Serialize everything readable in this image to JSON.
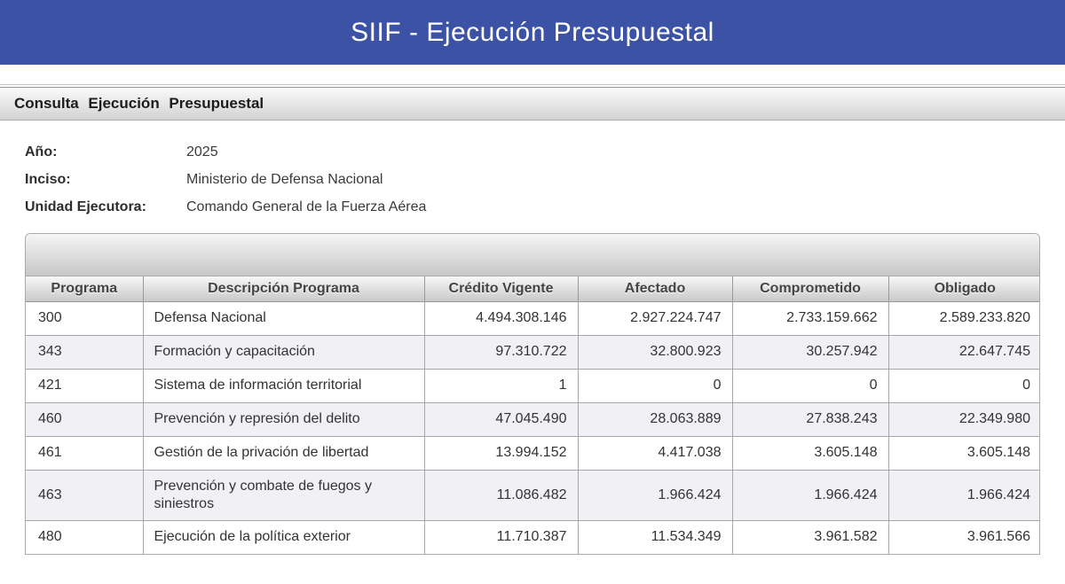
{
  "app": {
    "title": "SIIF - Ejecución Presupuestal"
  },
  "section": {
    "title": "Consulta Ejecución Presupuestal"
  },
  "filters": [
    {
      "label": "Año:",
      "value": "2025"
    },
    {
      "label": "Inciso:",
      "value": "Ministerio de Defensa Nacional"
    },
    {
      "label": "Unidad Ejecutora:",
      "value": "Comando General de la Fuerza Aérea"
    }
  ],
  "table": {
    "columns": [
      "Programa",
      "Descripción Programa",
      "Crédito Vigente",
      "Afectado",
      "Comprometido",
      "Obligado"
    ],
    "rows": [
      [
        "300",
        "Defensa Nacional",
        "4.494.308.146",
        "2.927.224.747",
        "2.733.159.662",
        "2.589.233.820"
      ],
      [
        "343",
        "Formación y capacitación",
        "97.310.722",
        "32.800.923",
        "30.257.942",
        "22.647.745"
      ],
      [
        "421",
        "Sistema de información territorial",
        "1",
        "0",
        "0",
        "0"
      ],
      [
        "460",
        "Prevención y represión del delito",
        "47.045.490",
        "28.063.889",
        "27.838.243",
        "22.349.980"
      ],
      [
        "461",
        "Gestión de la privación de libertad",
        "13.994.152",
        "4.417.038",
        "3.605.148",
        "3.605.148"
      ],
      [
        "463",
        "Prevención y combate de fuegos y siniestros",
        "11.086.482",
        "1.966.424",
        "1.966.424",
        "1.966.424"
      ],
      [
        "480",
        "Ejecución de la política exterior",
        "11.710.387",
        "11.534.349",
        "3.961.582",
        "3.961.566"
      ]
    ]
  },
  "colors": {
    "header_blue": "#3c52a5",
    "stripe_row": "#f0f0f5",
    "table_border": "#a6a6a6"
  }
}
